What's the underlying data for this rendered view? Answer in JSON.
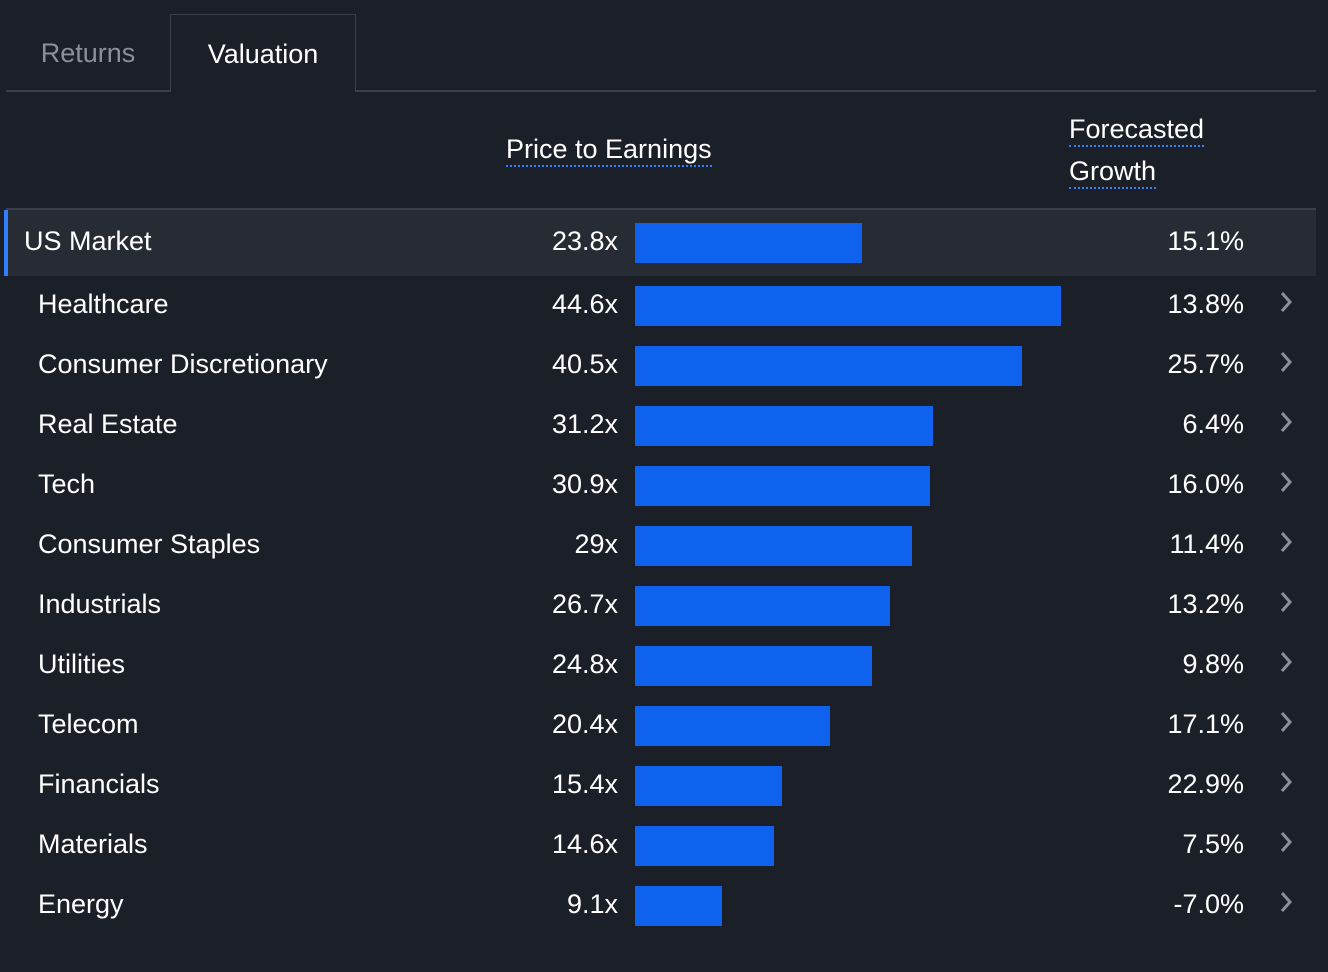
{
  "tabs": [
    {
      "label": "Returns",
      "active": false
    },
    {
      "label": "Valuation",
      "active": true
    }
  ],
  "headers": {
    "pe": "Price to Earnings",
    "growth_line1": "Forecasted",
    "growth_line2": "Growth"
  },
  "colors": {
    "bar": "#0e62ee",
    "accent": "#2f7fff",
    "background": "#1b1f28"
  },
  "chart_data": {
    "type": "bar",
    "orientation": "horizontal",
    "categories": [
      "US Market",
      "Healthcare",
      "Consumer Discretionary",
      "Real Estate",
      "Tech",
      "Consumer Staples",
      "Industrials",
      "Utilities",
      "Telecom",
      "Financials",
      "Materials",
      "Energy"
    ],
    "series": [
      {
        "name": "Price to Earnings",
        "values": [
          23.8,
          44.6,
          40.5,
          31.2,
          30.9,
          29,
          26.7,
          24.8,
          20.4,
          15.4,
          14.6,
          9.1
        ]
      }
    ],
    "pe_labels": [
      "23.8x",
      "44.6x",
      "40.5x",
      "31.2x",
      "30.9x",
      "29x",
      "26.7x",
      "24.8x",
      "20.4x",
      "15.4x",
      "14.6x",
      "9.1x"
    ],
    "growth_labels": [
      "15.1%",
      "13.8%",
      "25.7%",
      "6.4%",
      "16.0%",
      "11.4%",
      "13.2%",
      "9.8%",
      "17.1%",
      "22.9%",
      "7.5%",
      "-7.0%"
    ],
    "highlighted": "US Market"
  }
}
